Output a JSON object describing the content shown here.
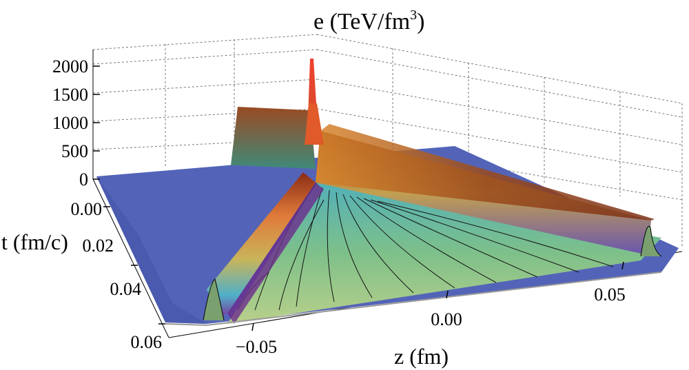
{
  "chart_data": {
    "type": "surface3d",
    "title": "e (TeV/fm",
    "title_sup": "3",
    "title_close": ")",
    "xlabel": "z (fm)",
    "ylabel": "t (fm/c)",
    "zlabel": "",
    "x_ticks": [
      "−0.05",
      "0.00",
      "0.05"
    ],
    "y_ticks": [
      "0.00",
      "0.02",
      "0.04",
      "0.06"
    ],
    "z_ticks": [
      "0",
      "500",
      "1000",
      "1500",
      "2000"
    ],
    "x_range": [
      -0.065,
      0.065
    ],
    "y_range": [
      0.0,
      0.06
    ],
    "z_range": [
      0,
      2100
    ],
    "grid": true,
    "colormap": "rainbow",
    "peak_energy_density": 2000,
    "ridge_height": 1000
  },
  "colors": {
    "floor": "#5a6bbe",
    "ridge_top": "#8b3a1f",
    "ridge_peak": "#e8322a",
    "valley": "#8fc27a"
  }
}
